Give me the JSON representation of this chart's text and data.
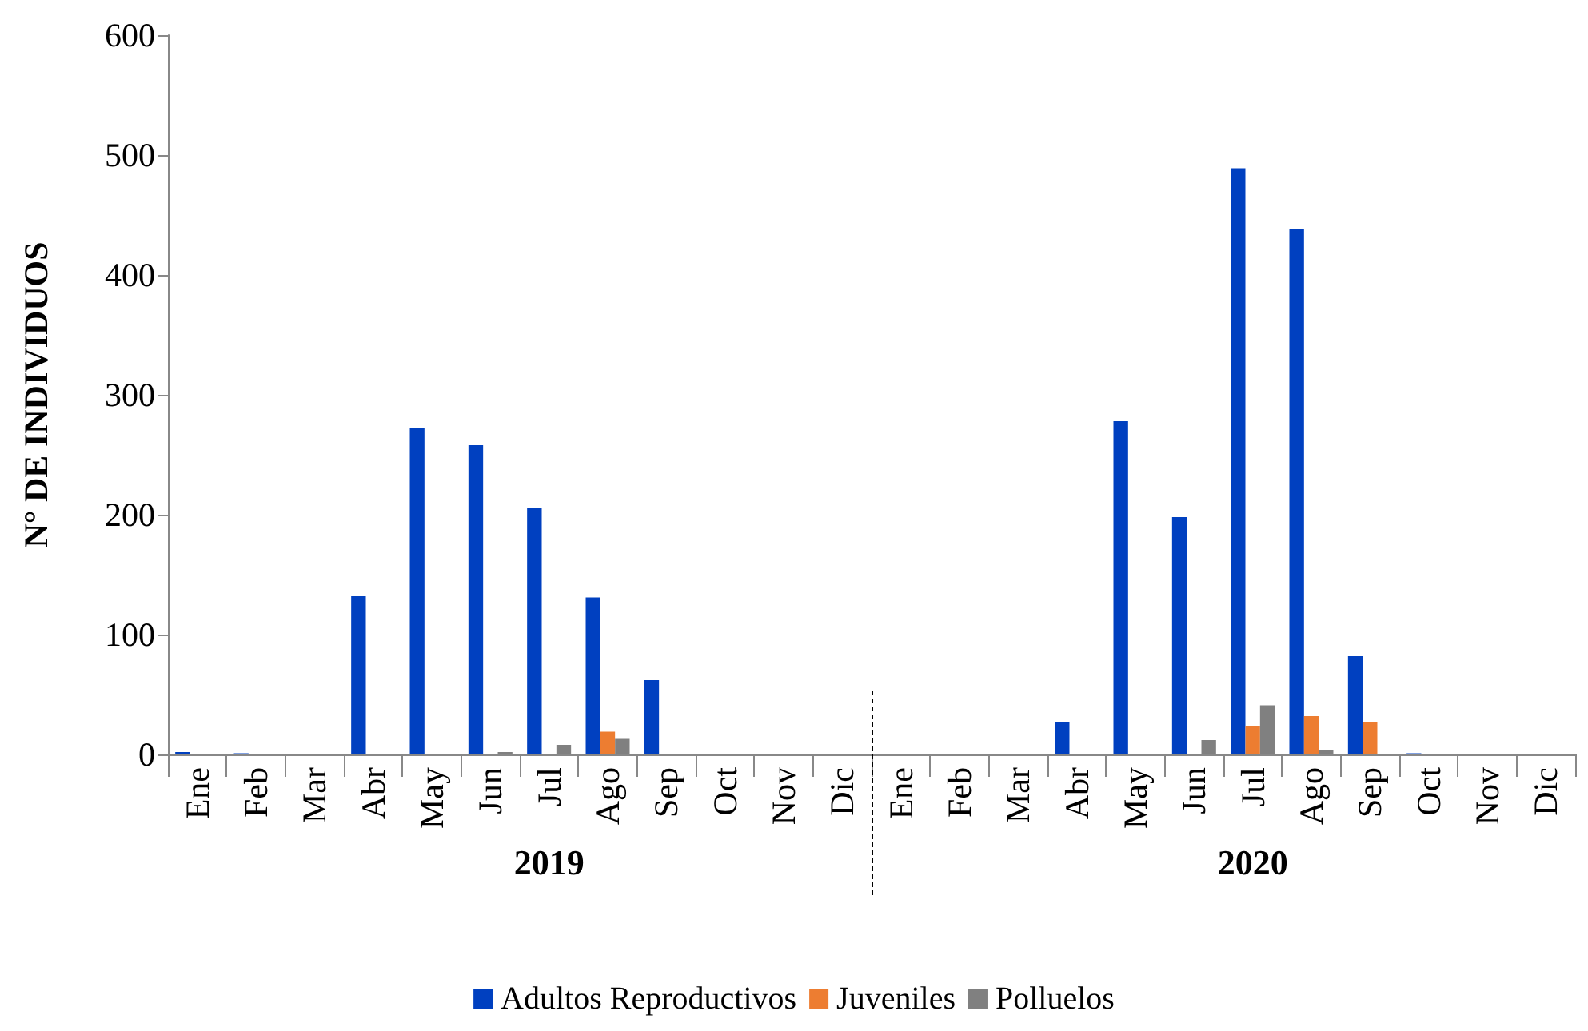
{
  "chart_data": {
    "type": "bar",
    "ylabel": "N° DE INDIVIDUOS",
    "categories": [
      "Ene",
      "Feb",
      "Mar",
      "Abr",
      "May",
      "Jun",
      "Jul",
      "Ago",
      "Sep",
      "Oct",
      "Nov",
      "Dic",
      "Ene",
      "Feb",
      "Mar",
      "Abr",
      "May",
      "Jun",
      "Jul",
      "Ago",
      "Sep",
      "Oct",
      "Nov",
      "Dic"
    ],
    "series": [
      {
        "name": "Adultos Reproductivos",
        "color": "#0040c0",
        "values": [
          2,
          1,
          0,
          132,
          272,
          258,
          206,
          131,
          62,
          0,
          0,
          0,
          0,
          0,
          0,
          27,
          278,
          198,
          489,
          438,
          82,
          1,
          0,
          0
        ]
      },
      {
        "name": "Juveniles",
        "color": "#ed7d31",
        "values": [
          0,
          0,
          0,
          0,
          0,
          0,
          0,
          19,
          0,
          0,
          0,
          0,
          0,
          0,
          0,
          0,
          0,
          0,
          24,
          32,
          27,
          0,
          0,
          0
        ]
      },
      {
        "name": "Polluelos",
        "color": "#808080",
        "values": [
          0,
          0,
          0,
          0,
          0,
          2,
          8,
          13,
          0,
          0,
          0,
          0,
          0,
          0,
          0,
          0,
          0,
          12,
          41,
          4,
          0,
          0,
          0,
          0
        ]
      }
    ],
    "annotations": [
      "2019",
      "2020"
    ],
    "ylim": [
      0,
      600
    ],
    "yticks": [
      0,
      100,
      200,
      300,
      400,
      500,
      600
    ],
    "grid": false,
    "legend": "bottom"
  }
}
